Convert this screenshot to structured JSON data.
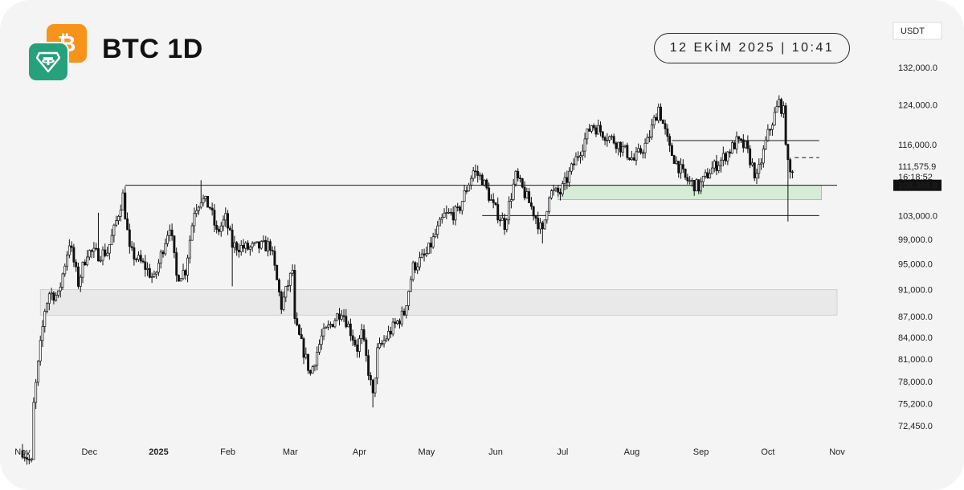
{
  "header": {
    "pair": "BTC 1D",
    "datetime": "12 EKİM 2025 | 10:41",
    "logo_icons": [
      "bitcoin-icon",
      "tether-icon"
    ],
    "btc_glyph": "₿"
  },
  "colors": {
    "background": "#f4f4f4",
    "candle": "#111111",
    "btc_orange": "#f7931a",
    "usdt_green": "#26a17b",
    "demand_zone": "#d6ecd6",
    "grey_zone": "#e9e9e9"
  },
  "chart_data": {
    "type": "candlestick",
    "currency": "USDT",
    "current_price": "111,575.9",
    "countdown": "16:18:52",
    "marked_level": "108,366.8",
    "y_ticks": [
      "132,000.0",
      "124,000.0",
      "116,000.0",
      "103,000.0",
      "99,000.0",
      "95,000.0",
      "91,000.0",
      "87,000.0",
      "84,000.0",
      "81,000.0",
      "78,000.0",
      "75,200.0",
      "72,450.0"
    ],
    "x_ticks": [
      "Nov",
      "Dec",
      "2025",
      "Feb",
      "Mar",
      "Apr",
      "May",
      "Jun",
      "Jul",
      "Aug",
      "Sep",
      "Oct",
      "Nov"
    ],
    "x_range": [
      "2024-11-01",
      "2025-11-01"
    ],
    "y_scale": "log",
    "grid": false,
    "price_path": [
      [
        "2024-11-01",
        69500
      ],
      [
        "2024-11-05",
        68000
      ],
      [
        "2024-11-06",
        75000
      ],
      [
        "2024-11-11",
        88000
      ],
      [
        "2024-11-13",
        90500
      ],
      [
        "2024-11-17",
        90000
      ],
      [
        "2024-11-22",
        98500
      ],
      [
        "2024-11-26",
        92000
      ],
      [
        "2024-11-30",
        97000
      ],
      [
        "2024-12-05",
        96500
      ],
      [
        "2024-12-09",
        97000
      ],
      [
        "2024-12-12",
        100500
      ],
      [
        "2024-12-16",
        106500
      ],
      [
        "2024-12-19",
        97000
      ],
      [
        "2024-12-26",
        94500
      ],
      [
        "2024-12-30",
        92500
      ],
      [
        "2025-01-06",
        101500
      ],
      [
        "2025-01-09",
        93000
      ],
      [
        "2025-01-13",
        94000
      ],
      [
        "2025-01-17",
        104000
      ],
      [
        "2025-01-20",
        106000
      ],
      [
        "2025-01-24",
        104500
      ],
      [
        "2025-01-27",
        100000
      ],
      [
        "2025-01-31",
        102500
      ],
      [
        "2025-02-03",
        98000
      ],
      [
        "2025-02-10",
        97500
      ],
      [
        "2025-02-20",
        98000
      ],
      [
        "2025-02-25",
        88500
      ],
      [
        "2025-03-02",
        94000
      ],
      [
        "2025-03-03",
        86000
      ],
      [
        "2025-03-10",
        79000
      ],
      [
        "2025-03-15",
        84000
      ],
      [
        "2025-03-24",
        88000
      ],
      [
        "2025-03-31",
        82500
      ],
      [
        "2025-04-02",
        84500
      ],
      [
        "2025-04-07",
        76000
      ],
      [
        "2025-04-09",
        82000
      ],
      [
        "2025-04-14",
        84500
      ],
      [
        "2025-04-21",
        87500
      ],
      [
        "2025-04-25",
        94500
      ],
      [
        "2025-05-01",
        96500
      ],
      [
        "2025-05-09",
        103000
      ],
      [
        "2025-05-15",
        103500
      ],
      [
        "2025-05-22",
        111000
      ],
      [
        "2025-05-26",
        109500
      ],
      [
        "2025-05-31",
        104500
      ],
      [
        "2025-06-05",
        101500
      ],
      [
        "2025-06-10",
        110000
      ],
      [
        "2025-06-17",
        104500
      ],
      [
        "2025-06-22",
        100000
      ],
      [
        "2025-06-25",
        107000
      ],
      [
        "2025-06-30",
        107000
      ],
      [
        "2025-07-03",
        109500
      ],
      [
        "2025-07-10",
        116000
      ],
      [
        "2025-07-14",
        120000
      ],
      [
        "2025-07-20",
        118000
      ],
      [
        "2025-07-25",
        116500
      ],
      [
        "2025-08-02",
        113000
      ],
      [
        "2025-08-08",
        116500
      ],
      [
        "2025-08-13",
        123500
      ],
      [
        "2025-08-18",
        115000
      ],
      [
        "2025-08-25",
        109500
      ],
      [
        "2025-08-31",
        108000
      ],
      [
        "2025-09-05",
        111000
      ],
      [
        "2025-09-10",
        113000
      ],
      [
        "2025-09-17",
        116500
      ],
      [
        "2025-09-21",
        115500
      ],
      [
        "2025-09-26",
        109500
      ],
      [
        "2025-10-01",
        118000
      ],
      [
        "2025-10-06",
        124500
      ],
      [
        "2025-10-08",
        122500
      ],
      [
        "2025-10-10",
        112000
      ],
      [
        "2025-10-11",
        110500
      ],
      [
        "2025-10-12",
        111575.9
      ]
    ],
    "spikes": [
      [
        "2024-12-05",
        103500
      ],
      [
        "2025-01-20",
        109300
      ],
      [
        "2025-02-03",
        91500
      ],
      [
        "2025-04-07",
        74700
      ],
      [
        "2025-06-22",
        98300
      ],
      [
        "2025-08-14",
        124300
      ],
      [
        "2025-10-06",
        126000
      ],
      [
        "2025-10-10",
        102000
      ]
    ],
    "levels": [
      {
        "price": 108366.8,
        "from": "2024-12-17",
        "to": "2025-11-01",
        "style": "solid"
      },
      {
        "price": 116800,
        "from": "2025-08-19",
        "to": "2025-10-24",
        "style": "solid"
      },
      {
        "price": 113500,
        "from": "2025-10-13",
        "to": "2025-10-24",
        "style": "dashed"
      },
      {
        "price": 103000,
        "from": "2025-05-26",
        "to": "2025-10-24",
        "style": "solid"
      }
    ],
    "zones": [
      {
        "from": "2025-06-29",
        "to": "2025-10-25",
        "top": 108366.8,
        "bottom": 105800,
        "color": "#d6ecd6"
      },
      {
        "from": "2024-11-09",
        "to": "2025-11-01",
        "top": 91000,
        "bottom": 87200,
        "color": "#e9e9e9"
      }
    ]
  }
}
